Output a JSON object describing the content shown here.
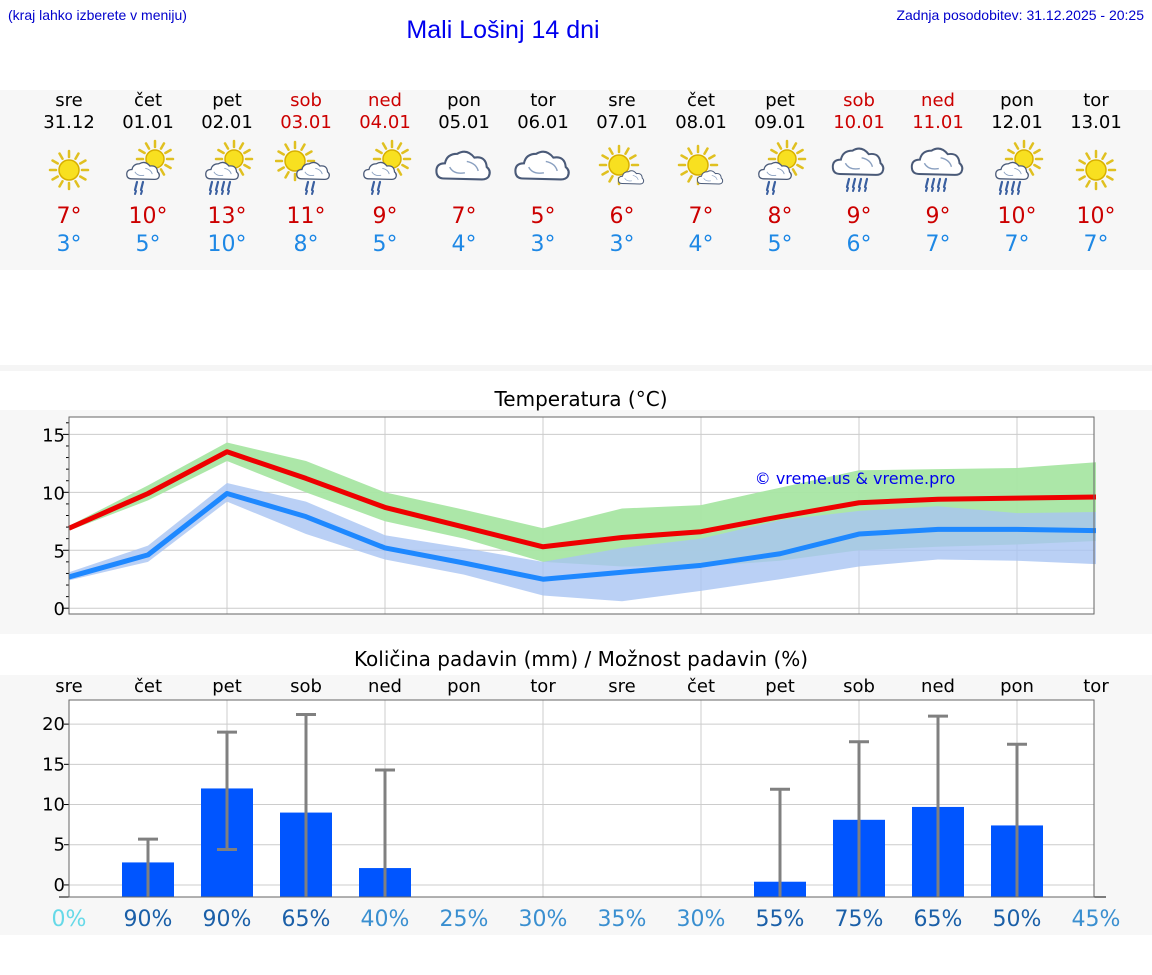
{
  "header": {
    "hint": "(kraj lahko izberete v meniju)",
    "title": "Mali Lošinj 14 dni",
    "updated": "Zadnja posodobitev: 31.12.2025 - 20:25"
  },
  "days": [
    {
      "name": "sre",
      "date": "31.12",
      "icon": "sun-icon",
      "max": "7°",
      "min": "3°",
      "weekend": false
    },
    {
      "name": "čet",
      "date": "01.01",
      "icon": "sun-cloud-rain-icon",
      "max": "10°",
      "min": "5°",
      "weekend": false
    },
    {
      "name": "pet",
      "date": "02.01",
      "icon": "sun-cloud-heavy-rain-icon",
      "max": "13°",
      "min": "10°",
      "weekend": false
    },
    {
      "name": "sob",
      "date": "03.01",
      "icon": "sun-cloud-rain-right-icon",
      "max": "11°",
      "min": "8°",
      "weekend": true
    },
    {
      "name": "ned",
      "date": "04.01",
      "icon": "sun-cloud-rain-icon",
      "max": "9°",
      "min": "5°",
      "weekend": true
    },
    {
      "name": "pon",
      "date": "05.01",
      "icon": "cloud-icon",
      "max": "7°",
      "min": "4°",
      "weekend": false
    },
    {
      "name": "tor",
      "date": "06.01",
      "icon": "cloud-icon",
      "max": "5°",
      "min": "3°",
      "weekend": false
    },
    {
      "name": "sre",
      "date": "07.01",
      "icon": "sun-small-cloud-icon",
      "max": "6°",
      "min": "3°",
      "weekend": false
    },
    {
      "name": "čet",
      "date": "08.01",
      "icon": "sun-small-cloud-icon",
      "max": "7°",
      "min": "4°",
      "weekend": false
    },
    {
      "name": "pet",
      "date": "09.01",
      "icon": "sun-cloud-rain-icon",
      "max": "8°",
      "min": "5°",
      "weekend": false
    },
    {
      "name": "sob",
      "date": "10.01",
      "icon": "cloud-heavy-rain-icon",
      "max": "9°",
      "min": "6°",
      "weekend": true
    },
    {
      "name": "ned",
      "date": "11.01",
      "icon": "cloud-heavy-rain-icon",
      "max": "9°",
      "min": "7°",
      "weekend": true
    },
    {
      "name": "pon",
      "date": "12.01",
      "icon": "sun-cloud-heavy-rain-icon",
      "max": "10°",
      "min": "7°",
      "weekend": false
    },
    {
      "name": "tor",
      "date": "13.01",
      "icon": "sun-icon",
      "max": "10°",
      "min": "7°",
      "weekend": false
    }
  ],
  "colors": {
    "max_line": "#ee0000",
    "max_band": "#a8e6a3",
    "min_line": "#1e88ff",
    "min_band": "#a9c4f2",
    "bar": "#0055ff",
    "error": "#808080",
    "weekend": "#cc0000"
  },
  "chart_data": [
    {
      "type": "line",
      "title": "Temperatura (°C)",
      "watermark": "© vreme.us & vreme.pro",
      "x": [
        "31.12",
        "01.01",
        "02.01",
        "03.01",
        "04.01",
        "05.01",
        "06.01",
        "07.01",
        "08.01",
        "09.01",
        "10.01",
        "11.01",
        "12.01",
        "13.01"
      ],
      "ylim": [
        -0.5,
        16.5
      ],
      "yticks": [
        0,
        5,
        10,
        15
      ],
      "grid": true,
      "series": [
        {
          "values": [
            6.9,
            9.9,
            13.5,
            11.2,
            8.7,
            7.0,
            5.3,
            6.1,
            6.6,
            7.9,
            9.1,
            9.4,
            9.5,
            9.6
          ],
          "band_low": [
            6.7,
            9.3,
            12.7,
            10.0,
            7.5,
            6.0,
            4.0,
            3.6,
            3.6,
            4.1,
            5.0,
            5.3,
            5.5,
            5.8
          ],
          "band_high": [
            7.1,
            10.6,
            14.3,
            12.7,
            10.0,
            8.5,
            6.9,
            8.6,
            8.9,
            10.4,
            11.9,
            12.0,
            12.1,
            12.6
          ]
        },
        {
          "values": [
            2.7,
            4.6,
            9.9,
            7.9,
            5.2,
            3.9,
            2.5,
            3.1,
            3.7,
            4.7,
            6.4,
            6.8,
            6.8,
            6.7
          ],
          "band_low": [
            2.4,
            4.0,
            9.2,
            6.4,
            4.2,
            2.9,
            1.1,
            0.6,
            1.5,
            2.5,
            3.6,
            4.2,
            4.1,
            3.8
          ],
          "band_high": [
            3.1,
            5.4,
            10.8,
            9.2,
            6.3,
            5.2,
            4.0,
            5.2,
            6.0,
            7.6,
            8.4,
            8.8,
            8.2,
            8.3
          ]
        }
      ]
    },
    {
      "type": "bar",
      "title": "Količina padavin (mm) / Možnost padavin (%)",
      "categories": [
        "sre",
        "čet",
        "pet",
        "sob",
        "ned",
        "pon",
        "tor",
        "sre",
        "čet",
        "pet",
        "sob",
        "ned",
        "pon",
        "tor"
      ],
      "values": [
        0,
        2.8,
        12.0,
        9.0,
        2.1,
        0,
        0,
        0,
        0,
        0.4,
        8.1,
        9.7,
        7.4,
        0
      ],
      "error_low": [
        0,
        0,
        4.4,
        0,
        0,
        0,
        0,
        0,
        0,
        0,
        0,
        0,
        0,
        0
      ],
      "error_high": [
        0,
        5.7,
        19.0,
        21.2,
        14.3,
        0,
        0,
        0,
        0,
        11.9,
        17.8,
        21.0,
        17.5,
        0
      ],
      "probability": [
        "0%",
        "90%",
        "90%",
        "65%",
        "40%",
        "25%",
        "30%",
        "35%",
        "30%",
        "55%",
        "75%",
        "65%",
        "50%",
        "45%"
      ],
      "probability_colors": [
        "#66d9e8",
        "#1a5fa8",
        "#1a5fa8",
        "#1a5fa8",
        "#3a8fd0",
        "#3a8fd0",
        "#3a8fd0",
        "#3a8fd0",
        "#3a8fd0",
        "#1a5fa8",
        "#1a5fa8",
        "#1a5fa8",
        "#1a5fa8",
        "#3a8fd0"
      ],
      "ylim": [
        -1.5,
        23
      ],
      "yticks": [
        0,
        5,
        10,
        15,
        20
      ],
      "grid": true
    }
  ]
}
